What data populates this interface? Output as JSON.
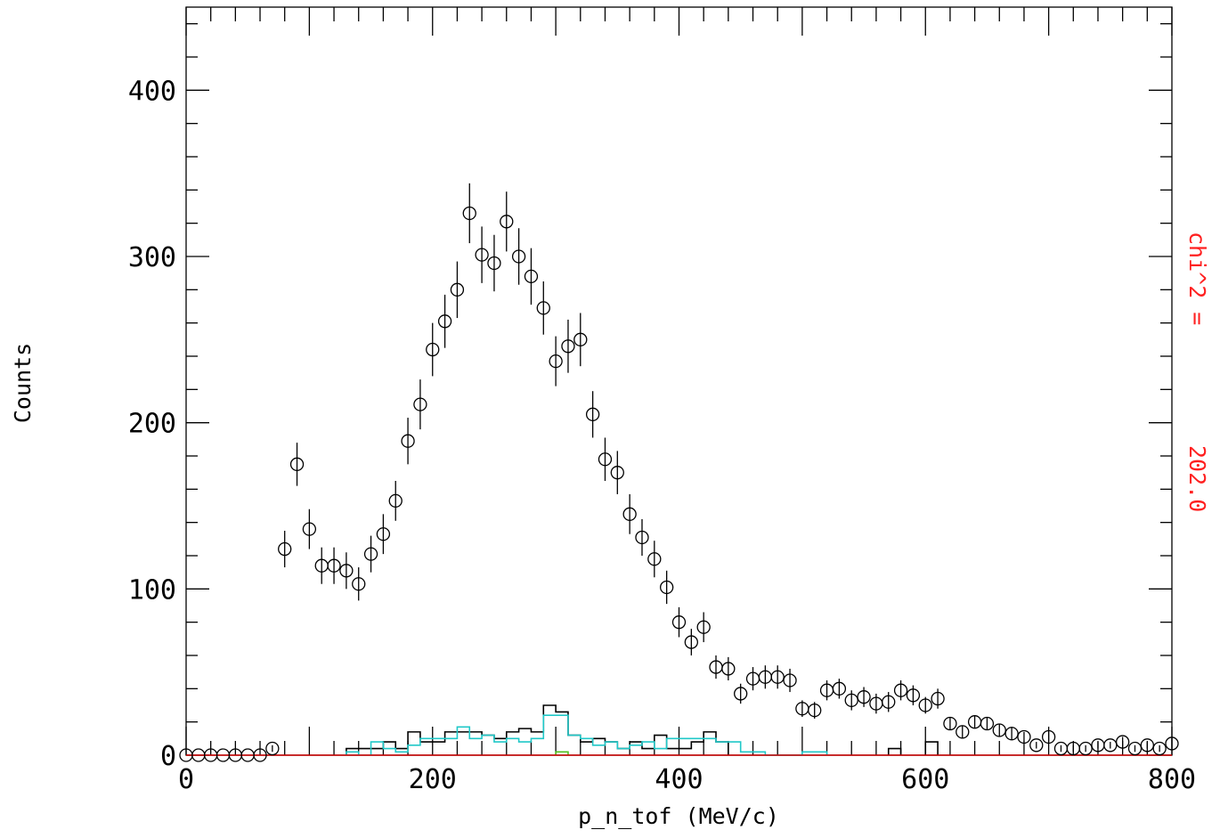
{
  "chart_data": {
    "type": "scatter",
    "title": "",
    "xlabel": "p_n_tof (MeV/c)",
    "ylabel": "Counts",
    "xlim": [
      0,
      800
    ],
    "ylim": [
      0,
      450
    ],
    "x_ticks": [
      "0",
      "200",
      "400",
      "600",
      "800"
    ],
    "y_ticks": [
      "0",
      "100",
      "200",
      "300",
      "400"
    ],
    "grid": false,
    "right_label": "chi^2 =",
    "chi2_value": "202.0",
    "colors": {
      "data": "#000000",
      "hist_black": "#000000",
      "hist_cyan": "#20c8c8",
      "hist_green": "#50c020",
      "baseline": "#d00000",
      "right_label": "#ff2020"
    },
    "data_points": {
      "name": "",
      "x": [
        0,
        10,
        20,
        30,
        40,
        50,
        60,
        70,
        80,
        90,
        100,
        110,
        120,
        130,
        140,
        150,
        160,
        170,
        180,
        190,
        200,
        210,
        220,
        230,
        240,
        250,
        260,
        270,
        280,
        290,
        300,
        310,
        320,
        330,
        340,
        350,
        360,
        370,
        380,
        390,
        400,
        410,
        420,
        430,
        440,
        450,
        460,
        470,
        480,
        490,
        500,
        510,
        520,
        530,
        540,
        550,
        560,
        570,
        580,
        590,
        600,
        610,
        620,
        630,
        640,
        650,
        660,
        670,
        680,
        690,
        700,
        710,
        720,
        730,
        740,
        750,
        760,
        770,
        780,
        790,
        800
      ],
      "y": [
        0,
        0,
        0,
        0,
        0,
        0,
        0,
        4,
        124,
        175,
        136,
        114,
        114,
        111,
        103,
        121,
        133,
        153,
        189,
        211,
        244,
        261,
        280,
        326,
        301,
        296,
        321,
        300,
        288,
        269,
        237,
        246,
        250,
        205,
        178,
        170,
        145,
        131,
        118,
        101,
        80,
        68,
        77,
        53,
        52,
        37,
        46,
        47,
        47,
        45,
        28,
        27,
        39,
        40,
        33,
        35,
        31,
        32,
        39,
        36,
        30,
        34,
        19,
        14,
        20,
        19,
        15,
        13,
        11,
        6,
        11,
        4,
        4,
        4,
        6,
        6,
        8,
        4,
        6,
        4,
        7
      ],
      "err": [
        0,
        0,
        0,
        0,
        0,
        0,
        0,
        2,
        11,
        13,
        12,
        11,
        11,
        11,
        10,
        11,
        12,
        12,
        14,
        15,
        16,
        16,
        17,
        18,
        17,
        17,
        18,
        17,
        17,
        16,
        15,
        16,
        16,
        14,
        13,
        13,
        12,
        11,
        11,
        10,
        9,
        8,
        9,
        7,
        7,
        6,
        7,
        7,
        7,
        7,
        5,
        5,
        6,
        6,
        6,
        6,
        6,
        6,
        6,
        6,
        5,
        6,
        4,
        4,
        4,
        4,
        4,
        4,
        3,
        2,
        3,
        2,
        2,
        2,
        2,
        2,
        3,
        2,
        2,
        2,
        3
      ]
    },
    "hist_black": {
      "bin_width": 10,
      "x": [
        130,
        140,
        150,
        160,
        170,
        180,
        190,
        200,
        210,
        220,
        230,
        240,
        250,
        260,
        270,
        280,
        290,
        300,
        310,
        320,
        330,
        340,
        350,
        360,
        370,
        380,
        390,
        400,
        410,
        420,
        430,
        570,
        600
      ],
      "y": [
        4,
        4,
        4,
        8,
        4,
        14,
        8,
        8,
        14,
        14,
        14,
        12,
        10,
        14,
        16,
        14,
        30,
        26,
        12,
        8,
        10,
        8,
        4,
        8,
        4,
        12,
        4,
        4,
        8,
        14,
        8,
        4,
        8
      ]
    },
    "hist_cyan": {
      "bin_width": 10,
      "x": [
        130,
        150,
        160,
        170,
        180,
        190,
        200,
        210,
        220,
        230,
        240,
        250,
        260,
        270,
        280,
        290,
        300,
        310,
        320,
        330,
        340,
        350,
        360,
        370,
        380,
        390,
        400,
        410,
        420,
        430,
        440,
        450,
        460,
        470,
        480,
        490,
        500,
        510
      ],
      "y": [
        2,
        8,
        4,
        2,
        6,
        10,
        10,
        10,
        17,
        10,
        12,
        8,
        10,
        8,
        10,
        24,
        24,
        12,
        10,
        6,
        8,
        4,
        6,
        8,
        4,
        10,
        10,
        10,
        10,
        8,
        8,
        2,
        2,
        0,
        0,
        0,
        2,
        2
      ]
    },
    "hist_green": {
      "bin_width": 10,
      "x": [
        300
      ],
      "y": [
        2
      ]
    }
  }
}
